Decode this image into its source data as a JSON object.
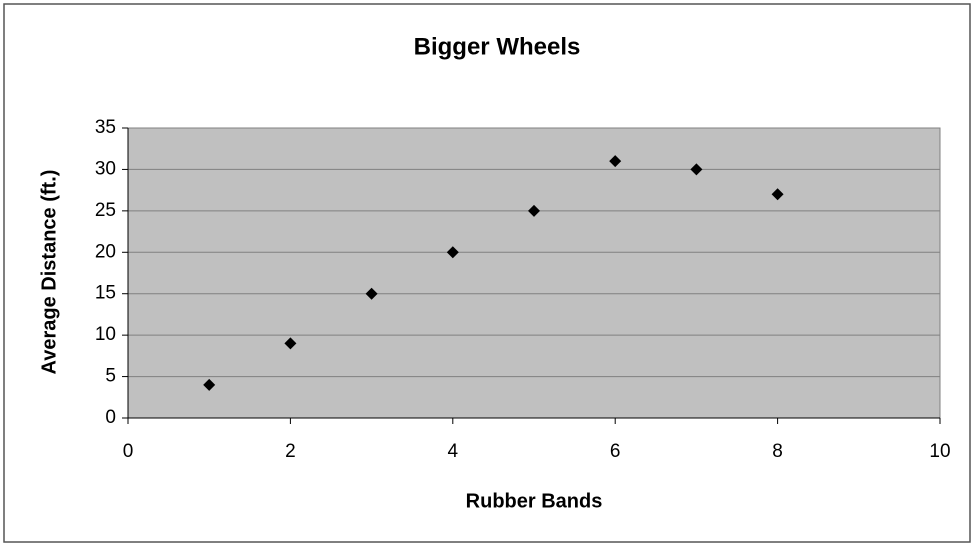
{
  "chart_data": {
    "type": "scatter",
    "title": "Bigger Wheels",
    "x_label": "Rubber Bands",
    "y_label": "Average Distance (ft.)",
    "x": [
      1,
      2,
      3,
      4,
      5,
      6,
      7,
      8
    ],
    "values": [
      4,
      9,
      15,
      20,
      25,
      31,
      30,
      27
    ],
    "color": "#000000",
    "xlim": [
      0,
      10
    ],
    "xticks": [
      0,
      2,
      4,
      6,
      8,
      10
    ],
    "ylim": [
      0,
      35
    ],
    "yticks": [
      0,
      5,
      10,
      15,
      20,
      25,
      30,
      35
    ],
    "grid": true
  }
}
